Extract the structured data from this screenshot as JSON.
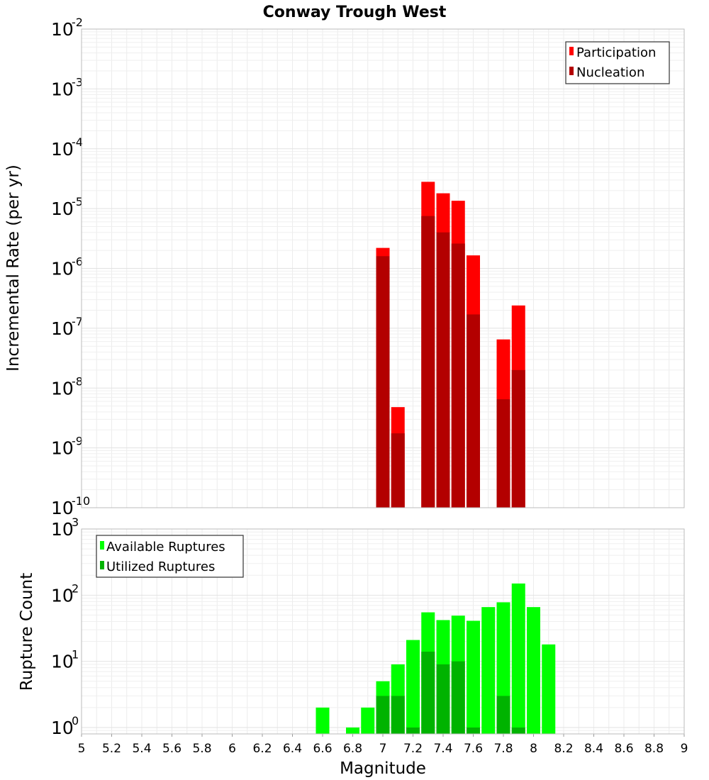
{
  "chart_data": [
    {
      "type": "bar",
      "title": "Conway Trough West",
      "ylabel": "Incremental Rate (per yr)",
      "yscale": "log",
      "ylim": [
        1e-10,
        0.01
      ],
      "y_tick_exponents": [
        "-10",
        "-9",
        "-8",
        "-7",
        "-6",
        "-5",
        "-4",
        "-3",
        "-2"
      ],
      "grid": true,
      "legend": "top-right",
      "x": [
        7.0,
        7.1,
        7.3,
        7.4,
        7.5,
        7.6,
        7.8,
        7.9
      ],
      "series": [
        {
          "name": "Participation",
          "color": "#ff0000",
          "values": [
            2.2e-06,
            4.8e-09,
            2.8e-05,
            1.8e-05,
            1.35e-05,
            1.65e-06,
            6.5e-08,
            2.4e-07
          ]
        },
        {
          "name": "Nucleation",
          "color": "#b30000",
          "values": [
            1.6e-06,
            1.75e-09,
            7.5e-06,
            4e-06,
            2.6e-06,
            1.7e-07,
            6.5e-09,
            2e-08
          ]
        }
      ]
    },
    {
      "type": "bar",
      "ylabel": "Rupture Count",
      "xlabel": "Magnitude",
      "yscale": "log",
      "ylim": [
        0.8,
        1000
      ],
      "y_tick_exponents": [
        "0",
        "1",
        "2",
        "3"
      ],
      "xlim": [
        5,
        9
      ],
      "x_ticks": [
        "5",
        "5.2",
        "5.4",
        "5.6",
        "5.8",
        "6",
        "6.2",
        "6.4",
        "6.6",
        "6.8",
        "7",
        "7.2",
        "7.4",
        "7.6",
        "7.8",
        "8",
        "8.2",
        "8.4",
        "8.6",
        "8.8",
        "9"
      ],
      "grid": true,
      "legend": "top-left",
      "x": [
        6.6,
        6.8,
        6.9,
        7.0,
        7.1,
        7.2,
        7.3,
        7.4,
        7.5,
        7.6,
        7.7,
        7.8,
        7.9,
        8.0,
        8.1
      ],
      "series": [
        {
          "name": "Available Ruptures",
          "color": "#00ff00",
          "values": [
            2,
            1,
            2,
            5,
            9,
            21,
            55,
            42,
            49,
            41,
            66,
            78,
            150,
            66,
            18
          ]
        },
        {
          "name": "Utilized Ruptures",
          "color": "#00b300",
          "values": [
            0,
            0,
            0,
            3,
            3,
            1,
            14,
            9,
            10,
            1,
            0,
            3,
            1,
            0,
            0
          ]
        }
      ]
    }
  ]
}
